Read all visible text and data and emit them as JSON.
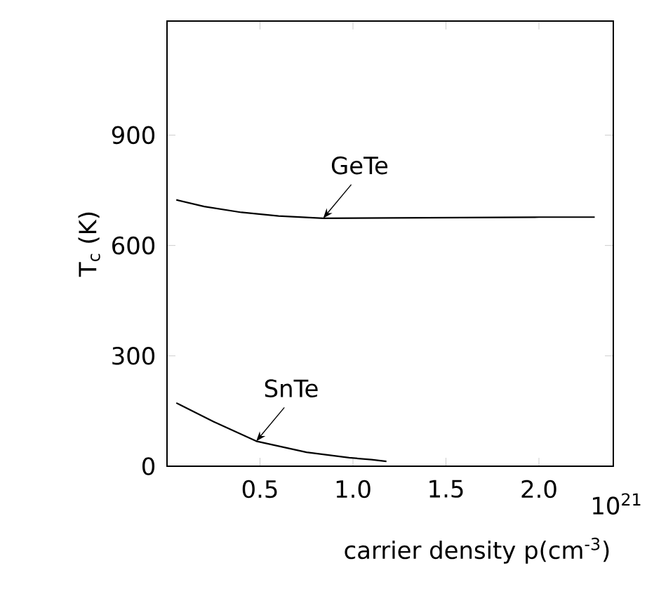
{
  "chart_data": {
    "type": "line",
    "xlabel": "carrier density p(cm$^{-3}$)",
    "ylabel": "T$_{c}$ (K)",
    "xlim": [
      0,
      2.4
    ],
    "ylim": [
      0,
      1210
    ],
    "xticks": [
      0.5,
      {
        "value": 1,
        "label": "1.0"
      },
      1.5,
      {
        "value": 2,
        "label": "2.0"
      }
    ],
    "yticks": [
      0,
      300,
      600,
      900
    ],
    "marker": "none",
    "line_style": "solid",
    "series": [
      {
        "color": "#000000",
        "x": [
          0.05,
          0.2,
          0.4,
          0.6,
          0.84,
          1.2,
          1.6,
          2.0,
          2.3
        ],
        "values": [
          724,
          706,
          690,
          680,
          674,
          675,
          676,
          677,
          677
        ]
      },
      {
        "color": "#000000",
        "x": [
          0.05,
          0.25,
          0.48,
          0.75,
          0.98,
          1.1,
          1.18
        ],
        "values": [
          172,
          121,
          68,
          38,
          23,
          18,
          13
        ]
      }
    ],
    "annotations": [
      {
        "text": "GeTe",
        "x": 0.84,
        "y": 674
      },
      {
        "text": "SnTe",
        "x": 0.48,
        "y": 68
      },
      "10$^{21}$"
    ]
  }
}
